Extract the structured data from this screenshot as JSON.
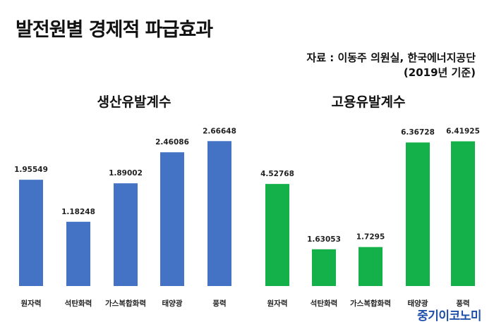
{
  "header": {
    "title": "발전원별 경제적 파급효과",
    "source_line1": "자료 : 이동주 의원실, 한국에너지공단",
    "source_line2": "(2019년 기준)"
  },
  "brand": "중기이코노미",
  "colors": {
    "blue": "#4472c4",
    "green": "#14b14b"
  },
  "chart_data": [
    {
      "type": "bar",
      "title": "생산유발계수",
      "categories": [
        "원자력",
        "석탄화력",
        "가스복합화력",
        "태양광",
        "풍력"
      ],
      "values": [
        1.95549,
        1.18248,
        1.89002,
        2.46086,
        2.66648
      ],
      "value_labels": [
        "1.95549",
        "1.18248",
        "1.89002",
        "2.46086",
        "2.66648"
      ],
      "ylim": [
        0,
        2.8
      ],
      "grid": false,
      "color": "#4472c4"
    },
    {
      "type": "bar",
      "title": "고용유발계수",
      "categories": [
        "원자력",
        "석탄화력",
        "가스복합화력",
        "태양광",
        "풍력"
      ],
      "values": [
        4.52768,
        1.63053,
        1.7295,
        6.36728,
        6.41925
      ],
      "value_labels": [
        "4.52768",
        "1.63053",
        "1.7295",
        "6.36728",
        "6.41925"
      ],
      "ylim": [
        0,
        6.75
      ],
      "grid": false,
      "color": "#14b14b"
    }
  ]
}
